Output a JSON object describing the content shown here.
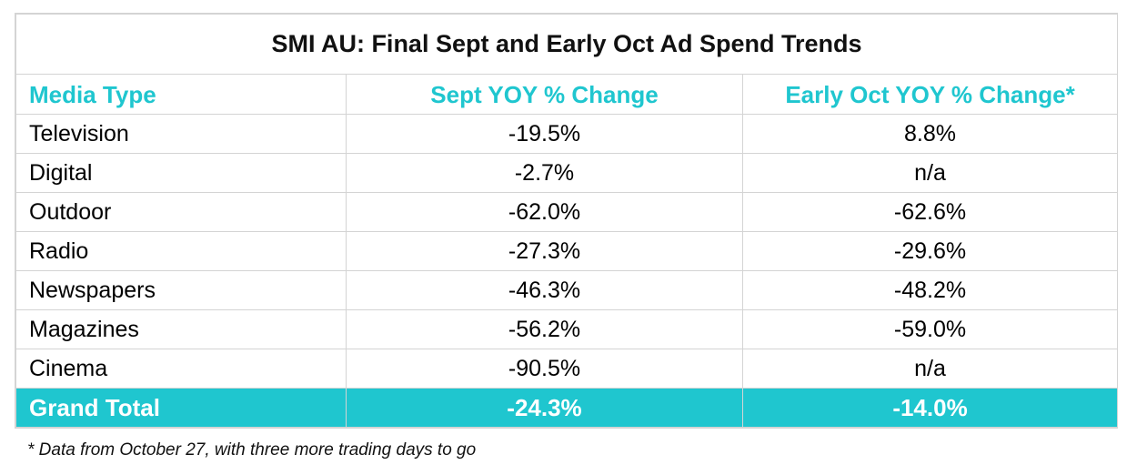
{
  "chart_data": {
    "type": "table",
    "title": "SMI AU: Final Sept and Early Oct Ad Spend Trends",
    "columns": [
      "Media Type",
      "Sept YOY % Change",
      "Early Oct YOY % Change*"
    ],
    "rows": [
      {
        "media": "Television",
        "sept": "-19.5%",
        "oct": "8.8%"
      },
      {
        "media": "Digital",
        "sept": "-2.7%",
        "oct": "n/a"
      },
      {
        "media": "Outdoor",
        "sept": "-62.0%",
        "oct": "-62.6%"
      },
      {
        "media": "Radio",
        "sept": "-27.3%",
        "oct": "-29.6%"
      },
      {
        "media": "Newspapers",
        "sept": "-46.3%",
        "oct": "-48.2%"
      },
      {
        "media": "Magazines",
        "sept": "-56.2%",
        "oct": "-59.0%"
      },
      {
        "media": "Cinema",
        "sept": "-90.5%",
        "oct": "n/a"
      }
    ],
    "total": {
      "media": "Grand Total",
      "sept": "-24.3%",
      "oct": "-14.0%"
    },
    "footnote": "* Data from October 27, with three more trading days to go"
  },
  "colors": {
    "accent": "#1fc6cf",
    "border": "#d4d4d4",
    "total_text": "#ffffff"
  }
}
